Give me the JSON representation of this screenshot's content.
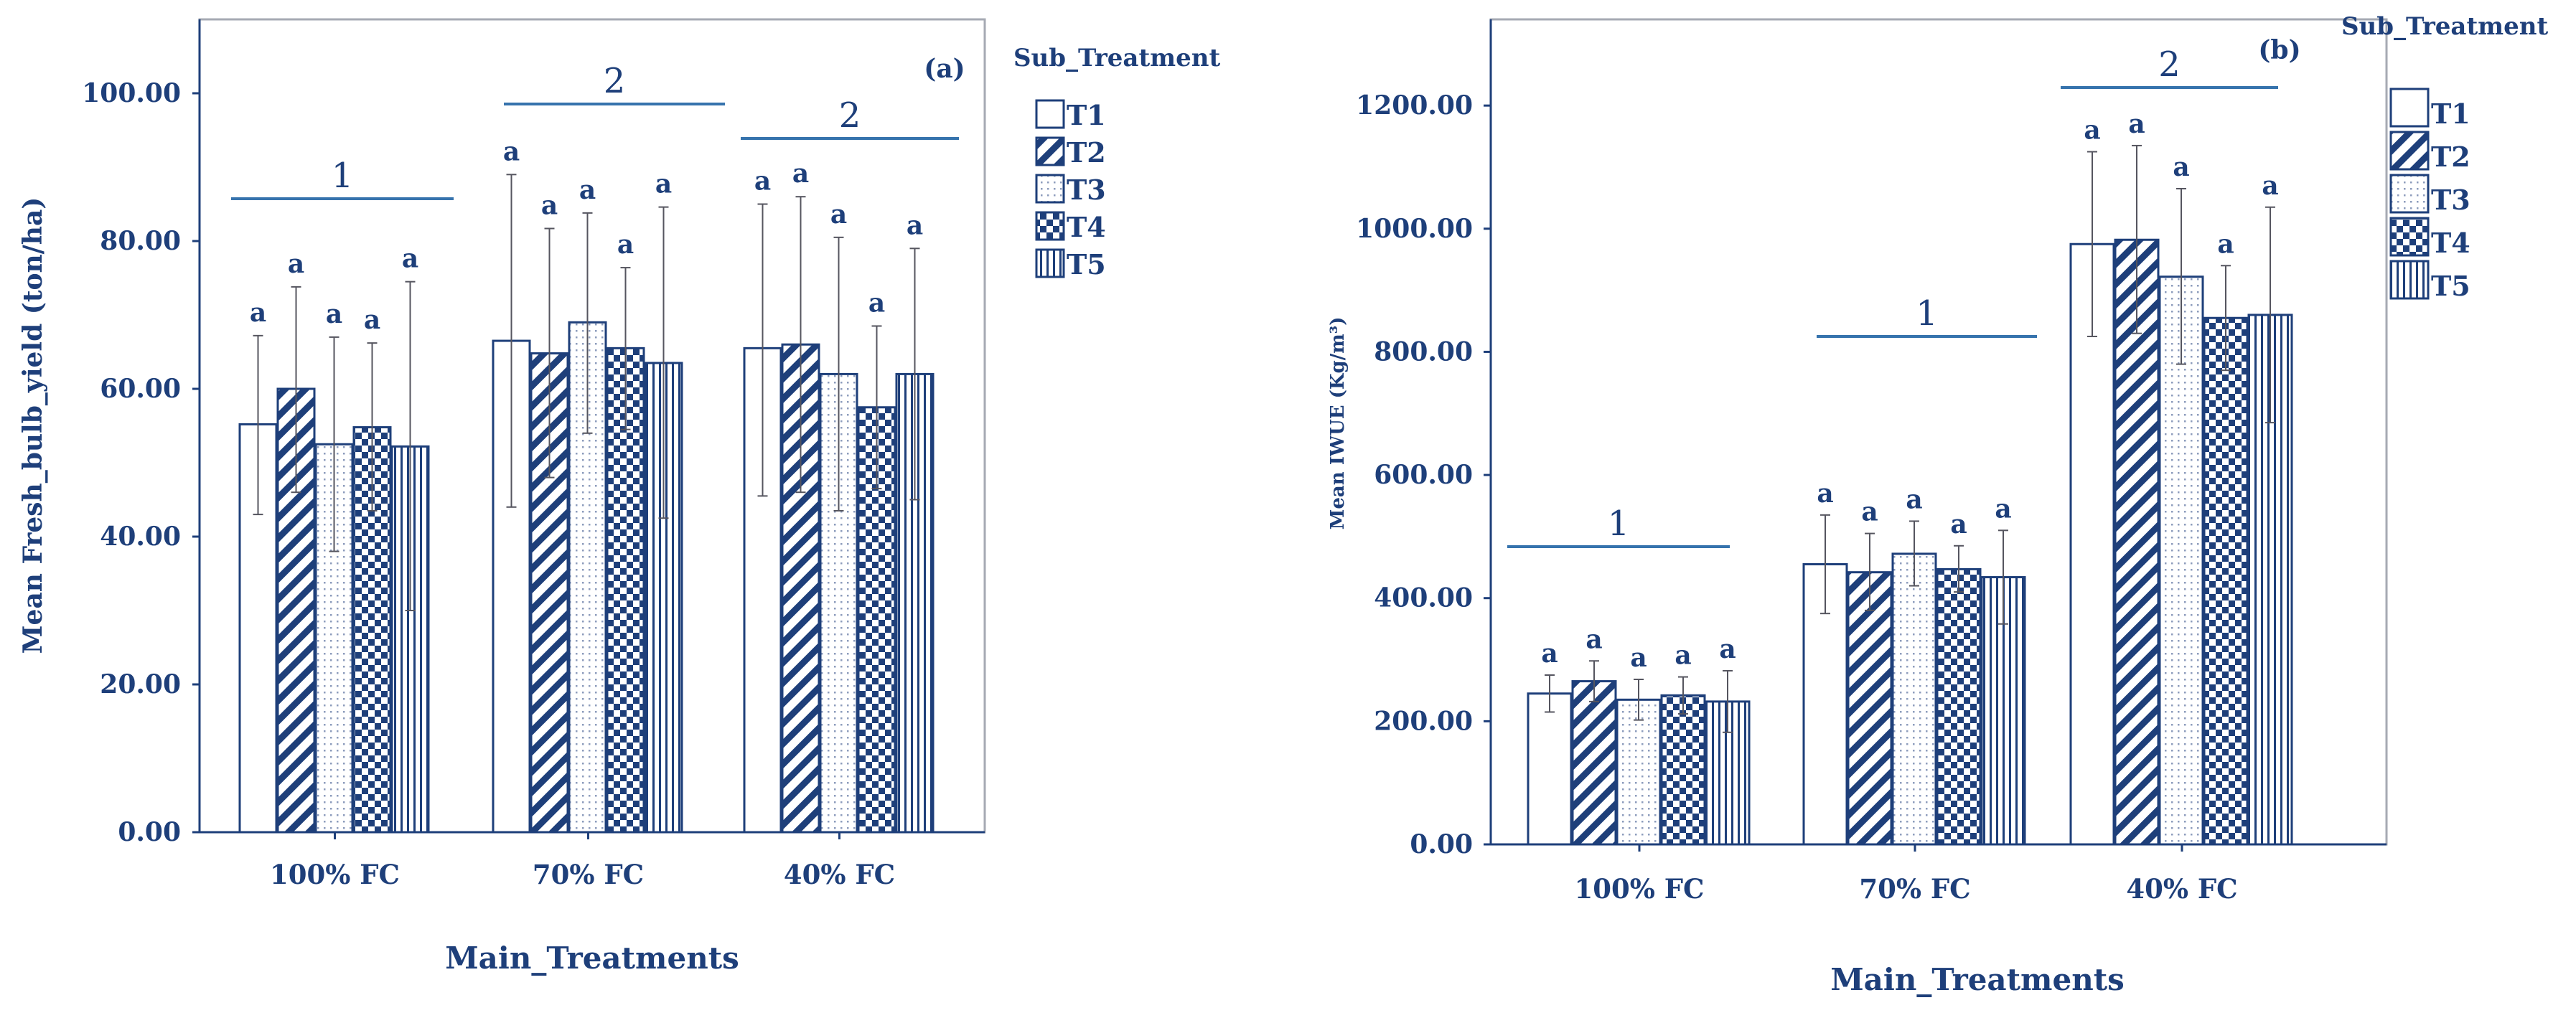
{
  "colors": {
    "ink": "#1e3f7a",
    "frame": "#a6aab3",
    "bar_stroke": "#1e3f7a",
    "group_line": "#3673ad",
    "axis": "#1e3f7a"
  },
  "legend_title": "Sub_Treatment",
  "legend_labels": [
    "T1",
    "T2",
    "T3",
    "T4",
    "T5"
  ],
  "legend_patterns": [
    "white",
    "diagonal",
    "dots",
    "checker",
    "vertical"
  ],
  "chart_data": [
    {
      "type": "bar",
      "panel": "(a)",
      "xlabel": "Main_Treatments",
      "ylabel": "Mean Fresh_bulb_yield (ton/ha)",
      "ylim": [
        0,
        110
      ],
      "ticks": [
        0,
        20,
        40,
        60,
        80,
        100
      ],
      "tick_labels": [
        "0.00",
        "20.00",
        "40.00",
        "60.00",
        "80.00",
        "100.00"
      ],
      "categories": [
        "100% FC",
        "70% FC",
        "40% FC"
      ],
      "series": [
        {
          "name": "T1",
          "values": [
            55.2,
            66.5,
            65.5
          ],
          "error_high": [
            67.2,
            89.0,
            85.0
          ],
          "error_low": [
            43.0,
            44.0,
            45.5
          ],
          "letters": [
            "a",
            "a",
            "a"
          ]
        },
        {
          "name": "T2",
          "values": [
            60.0,
            64.8,
            66.0
          ],
          "error_high": [
            73.8,
            81.7,
            86.0
          ],
          "error_low": [
            46.0,
            48.0,
            46.0
          ],
          "letters": [
            "a",
            "a",
            "a"
          ]
        },
        {
          "name": "T3",
          "values": [
            52.5,
            69.0,
            62.0
          ],
          "error_high": [
            67.0,
            83.8,
            80.5
          ],
          "error_low": [
            38.0,
            54.0,
            43.5
          ],
          "letters": [
            "a",
            "a",
            "a"
          ]
        },
        {
          "name": "T4",
          "values": [
            54.8,
            65.5,
            57.5
          ],
          "error_high": [
            66.2,
            76.4,
            68.5
          ],
          "error_low": [
            43.5,
            54.5,
            46.5
          ],
          "letters": [
            "a",
            "a",
            "a"
          ]
        },
        {
          "name": "T5",
          "values": [
            52.2,
            63.5,
            62.0
          ],
          "error_high": [
            74.5,
            84.6,
            79.0
          ],
          "error_low": [
            30.0,
            42.5,
            45.0
          ],
          "letters": [
            "a",
            "a",
            "a"
          ]
        }
      ],
      "group_letters": [
        "1",
        "2",
        "2"
      ]
    },
    {
      "type": "bar",
      "panel": "(b)",
      "xlabel": "Main_Treatments",
      "ylabel": "Mean IWUE  (Kg/m³)",
      "ylim": [
        0,
        1340
      ],
      "ticks": [
        0,
        200,
        400,
        600,
        800,
        1000,
        1200
      ],
      "tick_labels": [
        "0.00",
        "200.00",
        "400.00",
        "600.00",
        "800.00",
        "1000.00",
        "1200.00"
      ],
      "categories": [
        "100% FC",
        "70% FC",
        "40% FC"
      ],
      "series": [
        {
          "name": "T1",
          "values": [
            245,
            455,
            975
          ],
          "error_high": [
            275,
            535,
            1125
          ],
          "error_low": [
            215,
            375,
            825
          ],
          "letters": [
            "a",
            "a",
            "a"
          ]
        },
        {
          "name": "T2",
          "values": [
            265,
            442,
            982
          ],
          "error_high": [
            298,
            505,
            1135
          ],
          "error_low": [
            232,
            380,
            830
          ],
          "letters": [
            "a",
            "a",
            "a"
          ]
        },
        {
          "name": "T3",
          "values": [
            235,
            472,
            922
          ],
          "error_high": [
            268,
            525,
            1065
          ],
          "error_low": [
            202,
            420,
            780
          ],
          "letters": [
            "a",
            "a",
            "a"
          ]
        },
        {
          "name": "T4",
          "values": [
            242,
            447,
            855
          ],
          "error_high": [
            272,
            485,
            940
          ],
          "error_low": [
            212,
            410,
            770
          ],
          "letters": [
            "a",
            "a",
            "a"
          ]
        },
        {
          "name": "T5",
          "values": [
            232,
            434,
            860
          ],
          "error_high": [
            282,
            510,
            1035
          ],
          "error_low": [
            182,
            358,
            685
          ],
          "letters": [
            "a",
            "a",
            "a"
          ]
        }
      ],
      "group_letters": [
        "1",
        "1",
        "2"
      ]
    }
  ]
}
